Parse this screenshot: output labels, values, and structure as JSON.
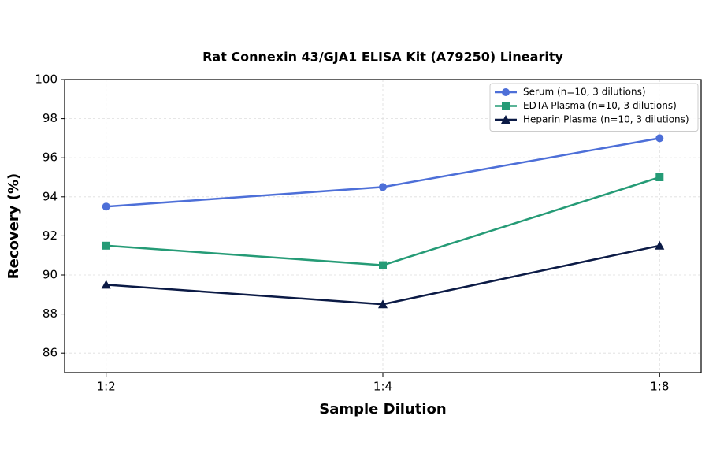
{
  "chart_data": {
    "type": "line",
    "title": "Rat Connexin 43/GJA1 ELISA Kit (A79250) Linearity",
    "xlabel": "Sample Dilution",
    "ylabel": "Recovery (%)",
    "categories": [
      "1:2",
      "1:4",
      "1:8"
    ],
    "series": [
      {
        "name": "Serum (n=10, 3 dilutions)",
        "color": "#4d6fd8",
        "marker": "circle",
        "values": [
          93.5,
          94.5,
          97
        ]
      },
      {
        "name": "EDTA Plasma (n=10, 3 dilutions)",
        "color": "#259b76",
        "marker": "square",
        "values": [
          91.5,
          90.5,
          95
        ]
      },
      {
        "name": "Heparin Plasma (n=10, 3 dilutions)",
        "color": "#0b1a45",
        "marker": "triangle",
        "values": [
          89.5,
          88.5,
          91.5
        ]
      }
    ],
    "ylim": [
      85,
      100
    ],
    "yticks": [
      86,
      88,
      90,
      92,
      94,
      96,
      98,
      100
    ],
    "grid": true,
    "legend": "upper right"
  }
}
